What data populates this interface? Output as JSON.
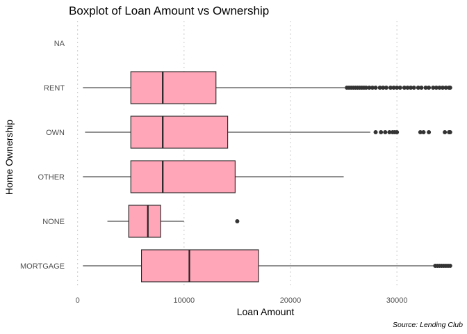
{
  "chart_data": {
    "type": "boxplot",
    "title": "Boxplot of Loan Amount vs Ownership",
    "xlabel": "Loan Amount",
    "ylabel": "Home Ownership",
    "caption": "Source: Lending Club",
    "orientation": "horizontal",
    "xlim": [
      -500,
      35800
    ],
    "xticks": [
      0,
      10000,
      20000,
      30000
    ],
    "xtick_labels": [
      "0",
      "10000",
      "20000",
      "30000"
    ],
    "grid": "vertical dotted",
    "box_fill": "#FFA6B8",
    "box_stroke": "#222222",
    "outlier_color": "#333333",
    "categories": [
      "NA",
      "RENT",
      "OWN",
      "OTHER",
      "NONE",
      "MORTGAGE"
    ],
    "boxes": [
      {
        "category": "NA"
      },
      {
        "category": "RENT",
        "whisker_low": 500,
        "q1": 5000,
        "median": 8000,
        "q3": 13000,
        "whisker_high": 25100,
        "outliers": [
          25300,
          25500,
          25700,
          25900,
          26100,
          26300,
          26500,
          26700,
          26900,
          27100,
          27400,
          27700,
          28000,
          28400,
          28700,
          29000,
          29400,
          29700,
          30000,
          30300,
          30700,
          31000,
          31300,
          31600,
          32000,
          32300,
          32700,
          33000,
          33400,
          33700,
          34000,
          34300,
          34600,
          34900,
          35000
        ]
      },
      {
        "category": "OWN",
        "whisker_low": 700,
        "q1": 5000,
        "median": 8000,
        "q3": 14100,
        "whisker_high": 27500,
        "outliers": [
          28000,
          28500,
          28900,
          29300,
          29600,
          29800,
          30000,
          32200,
          32500,
          33000,
          34500,
          34900,
          35000
        ]
      },
      {
        "category": "OTHER",
        "whisker_low": 500,
        "q1": 5000,
        "median": 8000,
        "q3": 14800,
        "whisker_high": 25000,
        "outliers": []
      },
      {
        "category": "NONE",
        "whisker_low": 2800,
        "q1": 4800,
        "median": 6600,
        "q3": 7800,
        "whisker_high": 10000,
        "outliers": [
          15000
        ]
      },
      {
        "category": "MORTGAGE",
        "whisker_low": 500,
        "q1": 6000,
        "median": 10500,
        "q3": 17000,
        "whisker_high": 33500,
        "outliers": [
          33600,
          33800,
          34000,
          34200,
          34400,
          34600,
          34800,
          35000
        ]
      }
    ]
  }
}
